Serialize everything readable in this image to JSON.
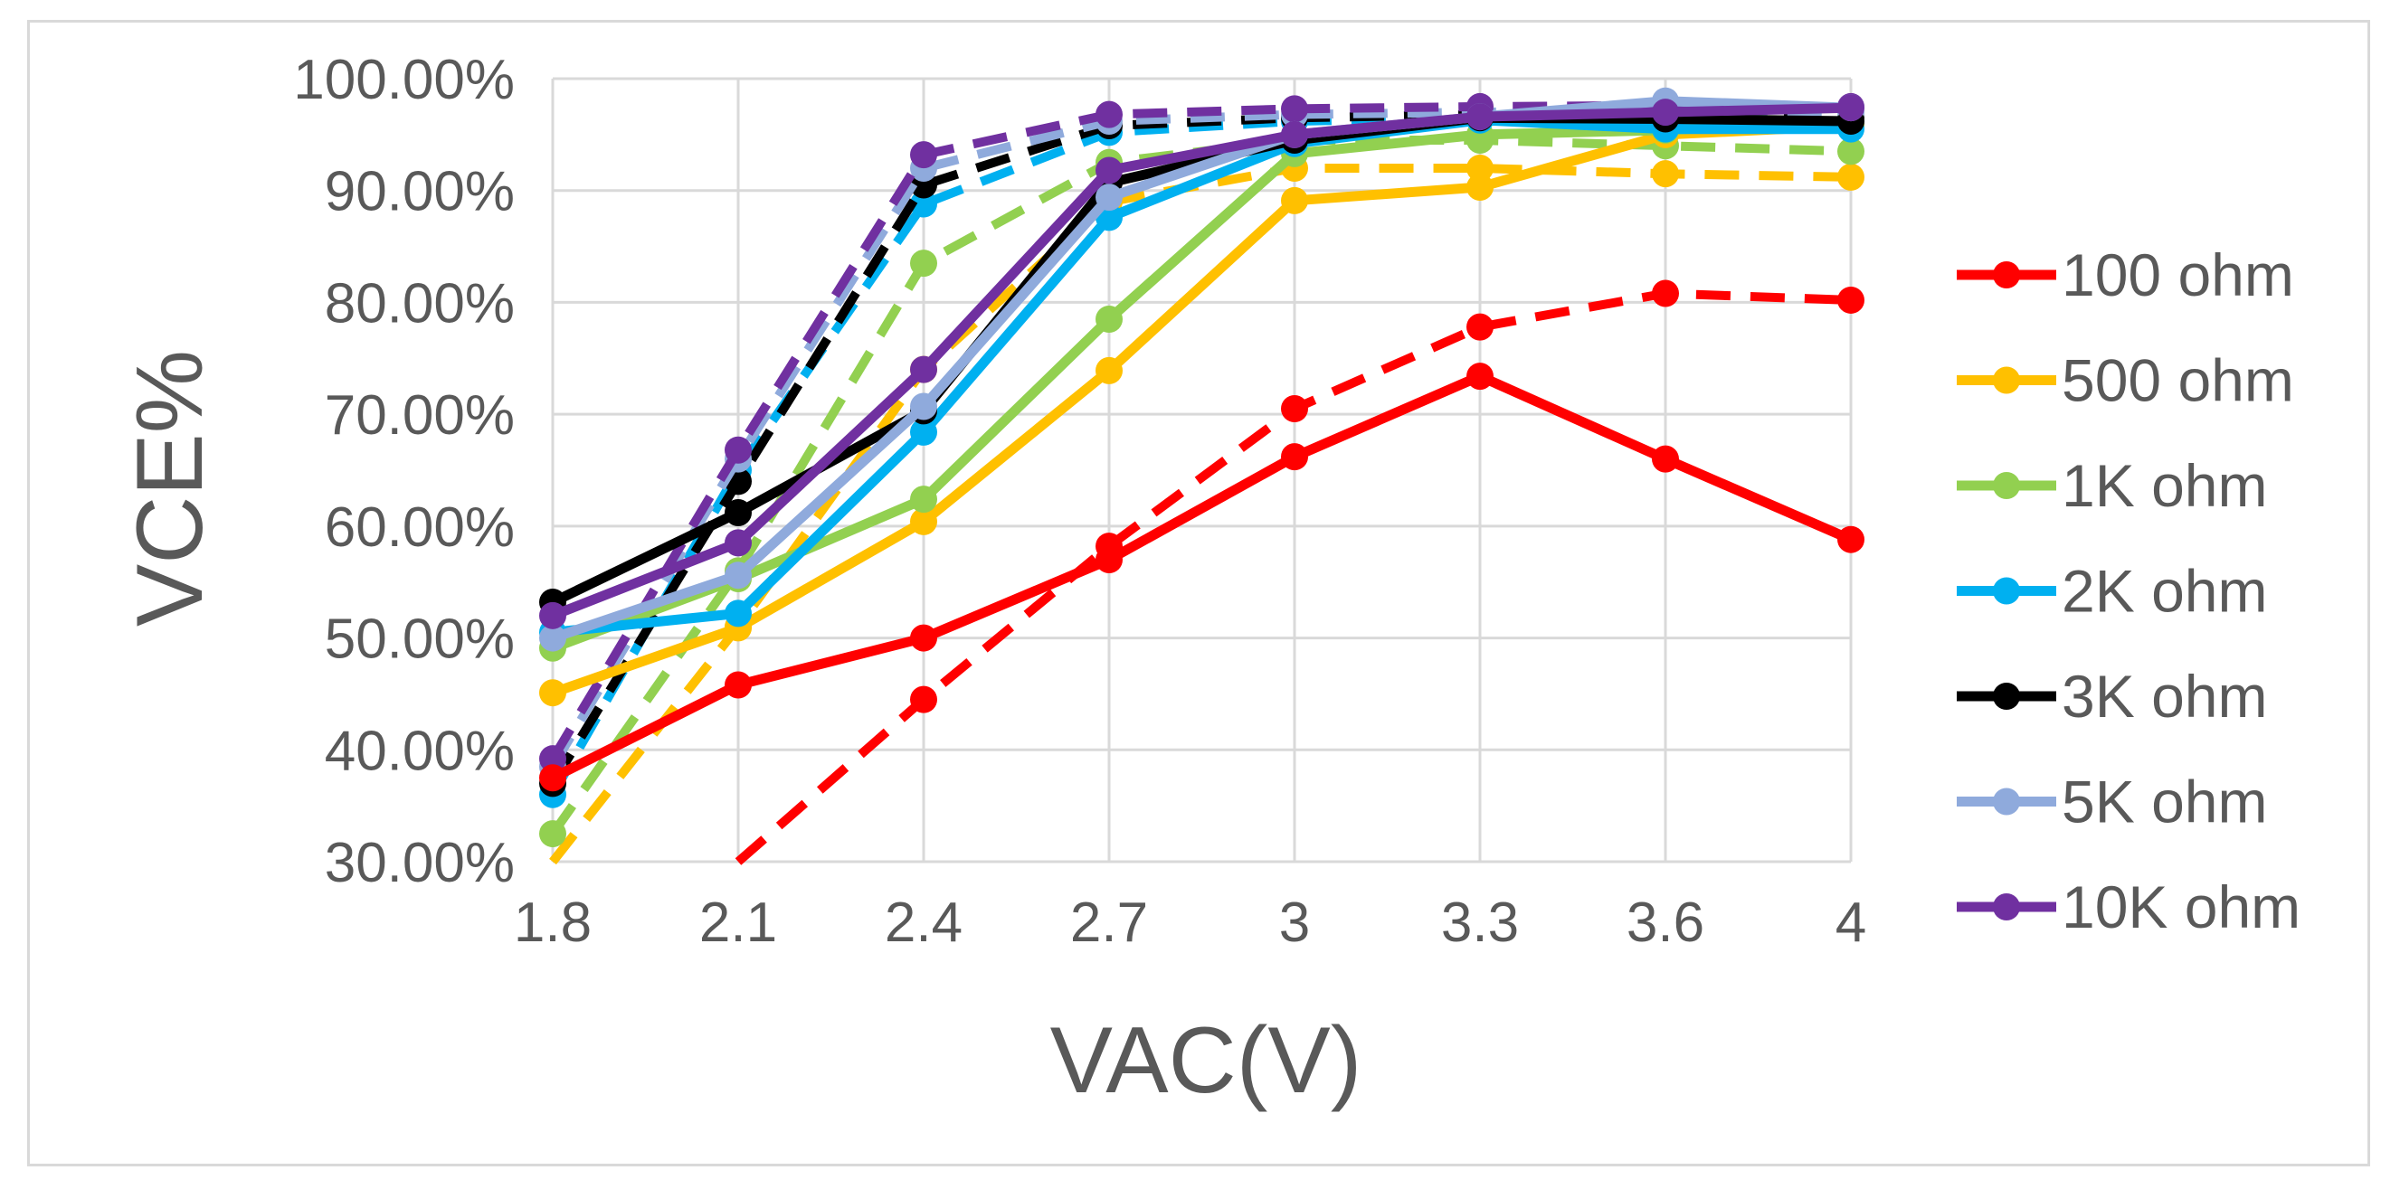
{
  "chart_data": {
    "type": "line",
    "title": "",
    "xlabel": "VAC(V)",
    "ylabel": "VCE%",
    "categories": [
      "1.8",
      "2.1",
      "2.4",
      "2.7",
      "3",
      "3.3",
      "3.6",
      "4"
    ],
    "ylim": [
      0.3,
      1.0
    ],
    "yticks": [
      0.3,
      0.4,
      0.5,
      0.6,
      0.7,
      0.8,
      0.9,
      1.0
    ],
    "ytick_labels": [
      "30.00%",
      "40.00%",
      "50.00%",
      "60.00%",
      "70.00%",
      "80.00%",
      "90.00%",
      "100.00%"
    ],
    "grid": true,
    "legend_position": "right",
    "legend_note": "Solid and dashed lines share the same color per load; dashed series have no separate legend entry.",
    "series": [
      {
        "name": "100 ohm",
        "color": "#ff0000",
        "style": "solid",
        "values": [
          0.375,
          0.458,
          0.5,
          0.57,
          0.662,
          0.734,
          0.66,
          0.588
        ]
      },
      {
        "name": "500 ohm",
        "color": "#ffc000",
        "style": "solid",
        "values": [
          0.451,
          0.509,
          0.604,
          0.739,
          0.891,
          0.903,
          0.95,
          0.958
        ]
      },
      {
        "name": "1K ohm",
        "color": "#92d050",
        "style": "solid",
        "values": [
          0.491,
          0.553,
          0.624,
          0.785,
          0.933,
          0.95,
          0.954,
          0.962
        ]
      },
      {
        "name": "2K ohm",
        "color": "#00b0f0",
        "style": "solid",
        "values": [
          0.505,
          0.522,
          0.684,
          0.876,
          0.942,
          0.963,
          0.955,
          0.955
        ]
      },
      {
        "name": "3K ohm",
        "color": "#000000",
        "style": "solid",
        "values": [
          0.532,
          0.612,
          0.703,
          0.907,
          0.945,
          0.965,
          0.964,
          0.962
        ]
      },
      {
        "name": "5K ohm",
        "color": "#8faadc",
        "style": "solid",
        "values": [
          0.5,
          0.556,
          0.707,
          0.894,
          0.95,
          0.966,
          0.98,
          0.974
        ]
      },
      {
        "name": "10K ohm",
        "color": "#7030a0",
        "style": "solid",
        "values": [
          0.52,
          0.585,
          0.74,
          0.918,
          0.95,
          0.966,
          0.97,
          0.974
        ]
      },
      {
        "name": "100 ohm",
        "color": "#ff0000",
        "style": "dashed",
        "values": [
          null,
          0.3,
          0.445,
          0.582,
          0.705,
          0.778,
          0.808,
          0.802
        ]
      },
      {
        "name": "500 ohm",
        "color": "#ffc000",
        "style": "dashed",
        "values": [
          0.3,
          0.51,
          0.74,
          0.89,
          0.92,
          0.92,
          0.915,
          0.912
        ]
      },
      {
        "name": "1K ohm",
        "color": "#92d050",
        "style": "dashed",
        "values": [
          0.325,
          0.56,
          0.835,
          0.925,
          0.945,
          0.945,
          0.94,
          0.935
        ]
      },
      {
        "name": "2K ohm",
        "color": "#00b0f0",
        "style": "dashed",
        "values": [
          0.36,
          0.65,
          0.888,
          0.952,
          0.962,
          0.965,
          0.96,
          0.958
        ]
      },
      {
        "name": "3K ohm",
        "color": "#000000",
        "style": "dashed",
        "values": [
          0.37,
          0.64,
          0.905,
          0.958,
          0.965,
          0.968,
          0.966,
          0.965
        ]
      },
      {
        "name": "5K ohm",
        "color": "#8faadc",
        "style": "dashed",
        "values": [
          0.385,
          0.66,
          0.92,
          0.962,
          0.968,
          0.97,
          0.972,
          0.97
        ]
      },
      {
        "name": "10K ohm",
        "color": "#7030a0",
        "style": "dashed",
        "values": [
          0.392,
          0.668,
          0.932,
          0.968,
          0.973,
          0.975,
          0.976,
          0.975
        ]
      }
    ],
    "legend": [
      {
        "name": "100 ohm",
        "color": "#ff0000"
      },
      {
        "name": "500 ohm",
        "color": "#ffc000"
      },
      {
        "name": "1K ohm",
        "color": "#92d050"
      },
      {
        "name": "2K ohm",
        "color": "#00b0f0"
      },
      {
        "name": "3K ohm",
        "color": "#000000"
      },
      {
        "name": "5K ohm",
        "color": "#8faadc"
      },
      {
        "name": "10K ohm",
        "color": "#7030a0"
      }
    ],
    "gridline_color": "#d9d9d9"
  }
}
